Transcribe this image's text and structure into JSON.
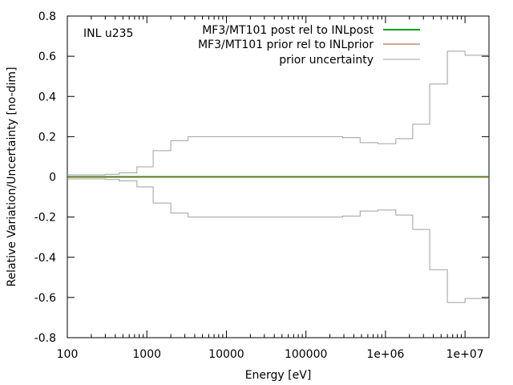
{
  "chart_data": {
    "type": "line",
    "annotation": "INL u235",
    "xlabel": "Energy [eV]",
    "ylabel": "Relative Variation/Uncertainty [no-dim]",
    "xscale": "log",
    "xlim": [
      100,
      20000000
    ],
    "ylim": [
      -0.8,
      0.8
    ],
    "grid": false,
    "legend_position": "top-right",
    "x_tick_labels": [
      "100",
      "1000",
      "10000",
      "100000",
      "1e+06",
      "1e+07"
    ],
    "x_tick_values": [
      100,
      1000,
      10000,
      100000,
      1000000,
      10000000
    ],
    "y_tick_labels": [
      "0.8",
      "0.6",
      "0.4",
      "0.2",
      "0",
      "-0.2",
      "-0.4",
      "-0.6",
      "-0.8"
    ],
    "y_tick_values": [
      0.8,
      0.6,
      0.4,
      0.2,
      0,
      -0.2,
      -0.4,
      -0.6,
      -0.8
    ],
    "series": [
      {
        "name": "MF3/MT101 post rel to INLpost",
        "color": "#00a000",
        "style": "line",
        "x": [
          100,
          20000000
        ],
        "y": [
          0,
          0
        ]
      },
      {
        "name": "MF3/MT101 prior rel to INLprior",
        "color": "#a0522d",
        "style": "line",
        "x": [
          100,
          20000000
        ],
        "y": [
          0,
          0
        ]
      },
      {
        "name": "prior uncertainty",
        "color": "#a0a0a0",
        "style": "step",
        "mirrored": true,
        "bin_edges": [
          100,
          300,
          450,
          750,
          1200,
          2000,
          3300,
          290000,
          480000,
          800000,
          1350000,
          2200000,
          3600000,
          6000000,
          10000000,
          20000000
        ],
        "values": [
          0.01,
          0.013,
          0.02,
          0.05,
          0.13,
          0.18,
          0.2,
          0.195,
          0.17,
          0.165,
          0.19,
          0.262,
          0.462,
          0.625,
          0.605
        ]
      }
    ]
  }
}
